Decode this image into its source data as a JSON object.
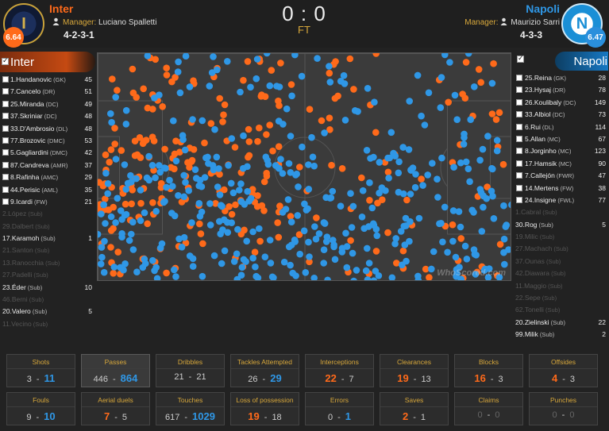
{
  "header": {
    "home": {
      "name": "Inter",
      "rating": "6.64",
      "manager_label": "Manager:",
      "manager": "Luciano Spalletti",
      "formation": "4-2-3-1",
      "logo_icon": "inter-crest-icon"
    },
    "away": {
      "name": "Napoli",
      "rating": "6.47",
      "manager_label": "Manager:",
      "manager": "Maurizio Sarri",
      "formation": "4-3-3",
      "logo_icon": "napoli-crest-icon"
    },
    "score": "0 : 0",
    "status": "FT"
  },
  "colors": {
    "home": "#ff6a1a",
    "away": "#2f97e6",
    "accent": "#d8a83b"
  },
  "home_panel": {
    "team_tab": "Inter",
    "players": [
      {
        "name": "1.Handanovic",
        "pos": "(GK)",
        "touches": "45",
        "sub": false,
        "played": true
      },
      {
        "name": "7.Cancelo",
        "pos": "(DR)",
        "touches": "51",
        "sub": false,
        "played": true
      },
      {
        "name": "25.Miranda",
        "pos": "(DC)",
        "touches": "49",
        "sub": false,
        "played": true
      },
      {
        "name": "37.Skriniar",
        "pos": "(DC)",
        "touches": "48",
        "sub": false,
        "played": true
      },
      {
        "name": "33.D'Ambrosio",
        "pos": "(DL)",
        "touches": "48",
        "sub": false,
        "played": true
      },
      {
        "name": "77.Brozovic",
        "pos": "(DMC)",
        "touches": "53",
        "sub": false,
        "played": true
      },
      {
        "name": "5.Gagliardini",
        "pos": "(DMC)",
        "touches": "42",
        "sub": false,
        "played": true
      },
      {
        "name": "87.Candreva",
        "pos": "(AMR)",
        "touches": "37",
        "sub": false,
        "played": true
      },
      {
        "name": "8.Rafinha",
        "pos": "(AMC)",
        "touches": "29",
        "sub": false,
        "played": true
      },
      {
        "name": "44.Perisic",
        "pos": "(AML)",
        "touches": "35",
        "sub": false,
        "played": true
      },
      {
        "name": "9.Icardi",
        "pos": "(FW)",
        "touches": "21",
        "sub": false,
        "played": true
      },
      {
        "name": "2.López",
        "pos": "(Sub)",
        "touches": "",
        "sub": true,
        "played": false
      },
      {
        "name": "29.Dalbert",
        "pos": "(Sub)",
        "touches": "",
        "sub": true,
        "played": false
      },
      {
        "name": "17.Karamoh",
        "pos": "(Sub)",
        "touches": "1",
        "sub": true,
        "played": true
      },
      {
        "name": "21.Santon",
        "pos": "(Sub)",
        "touches": "",
        "sub": true,
        "played": false
      },
      {
        "name": "13.Ranocchia",
        "pos": "(Sub)",
        "touches": "",
        "sub": true,
        "played": false
      },
      {
        "name": "27.Padelli",
        "pos": "(Sub)",
        "touches": "",
        "sub": true,
        "played": false
      },
      {
        "name": "23.Éder",
        "pos": "(Sub)",
        "touches": "10",
        "sub": true,
        "played": true
      },
      {
        "name": "46.Berni",
        "pos": "(Sub)",
        "touches": "",
        "sub": true,
        "played": false
      },
      {
        "name": "20.Valero",
        "pos": "(Sub)",
        "touches": "5",
        "sub": true,
        "played": true
      },
      {
        "name": "11.Vecino",
        "pos": "(Sub)",
        "touches": "",
        "sub": true,
        "played": false
      }
    ]
  },
  "away_panel": {
    "team_tab": "Napoli",
    "players": [
      {
        "name": "25.Reina",
        "pos": "(GK)",
        "touches": "28",
        "sub": false,
        "played": true
      },
      {
        "name": "23.Hysaj",
        "pos": "(DR)",
        "touches": "78",
        "sub": false,
        "played": true
      },
      {
        "name": "26.Koulibaly",
        "pos": "(DC)",
        "touches": "149",
        "sub": false,
        "played": true
      },
      {
        "name": "33.Albiol",
        "pos": "(DC)",
        "touches": "73",
        "sub": false,
        "played": true
      },
      {
        "name": "6.Rui",
        "pos": "(DL)",
        "touches": "114",
        "sub": false,
        "played": true
      },
      {
        "name": "5.Allan",
        "pos": "(MC)",
        "touches": "67",
        "sub": false,
        "played": true
      },
      {
        "name": "8.Jorginho",
        "pos": "(MC)",
        "touches": "123",
        "sub": false,
        "played": true
      },
      {
        "name": "17.Hamsik",
        "pos": "(MC)",
        "touches": "90",
        "sub": false,
        "played": true
      },
      {
        "name": "7.Callejón",
        "pos": "(FWR)",
        "touches": "47",
        "sub": false,
        "played": true
      },
      {
        "name": "14.Mertens",
        "pos": "(FW)",
        "touches": "38",
        "sub": false,
        "played": true
      },
      {
        "name": "24.Insigne",
        "pos": "(FWL)",
        "touches": "77",
        "sub": false,
        "played": true
      },
      {
        "name": "1.Cabral",
        "pos": "(Sub)",
        "touches": "",
        "sub": true,
        "played": false
      },
      {
        "name": "30.Rog",
        "pos": "(Sub)",
        "touches": "5",
        "sub": true,
        "played": true
      },
      {
        "name": "19.Milic",
        "pos": "(Sub)",
        "touches": "",
        "sub": true,
        "played": false
      },
      {
        "name": "27.Machach",
        "pos": "(Sub)",
        "touches": "",
        "sub": true,
        "played": false
      },
      {
        "name": "37.Ounas",
        "pos": "(Sub)",
        "touches": "",
        "sub": true,
        "played": false
      },
      {
        "name": "42.Diawara",
        "pos": "(Sub)",
        "touches": "",
        "sub": true,
        "played": false
      },
      {
        "name": "11.Maggio",
        "pos": "(Sub)",
        "touches": "",
        "sub": true,
        "played": false
      },
      {
        "name": "22.Sepe",
        "pos": "(Sub)",
        "touches": "",
        "sub": true,
        "played": false
      },
      {
        "name": "62.Tonelli",
        "pos": "(Sub)",
        "touches": "",
        "sub": true,
        "played": false
      },
      {
        "name": "20.Zielinski",
        "pos": "(Sub)",
        "touches": "22",
        "sub": true,
        "played": true
      },
      {
        "name": "99.Milik",
        "pos": "(Sub)",
        "touches": "2",
        "sub": true,
        "played": true
      }
    ]
  },
  "pitch": {
    "watermark": "WhoScored.com"
  },
  "stats": [
    {
      "label": "Shots",
      "home": "3",
      "away": "11",
      "winner": "away",
      "active": false
    },
    {
      "label": "Passes",
      "home": "446",
      "away": "864",
      "winner": "away",
      "active": true
    },
    {
      "label": "Dribbles",
      "home": "21",
      "away": "21",
      "winner": "none",
      "active": false
    },
    {
      "label": "Tackles Attempted",
      "home": "26",
      "away": "29",
      "winner": "away",
      "active": false
    },
    {
      "label": "Interceptions",
      "home": "22",
      "away": "7",
      "winner": "home",
      "active": false
    },
    {
      "label": "Clearances",
      "home": "19",
      "away": "13",
      "winner": "home",
      "active": false
    },
    {
      "label": "Blocks",
      "home": "16",
      "away": "3",
      "winner": "home",
      "active": false
    },
    {
      "label": "Offsides",
      "home": "4",
      "away": "3",
      "winner": "home",
      "active": false
    },
    {
      "label": "Fouls",
      "home": "9",
      "away": "10",
      "winner": "away",
      "active": false
    },
    {
      "label": "Aerial duels",
      "home": "7",
      "away": "5",
      "winner": "home",
      "active": false
    },
    {
      "label": "Touches",
      "home": "617",
      "away": "1029",
      "winner": "away",
      "active": false
    },
    {
      "label": "Loss of possession",
      "home": "19",
      "away": "18",
      "winner": "home",
      "active": false
    },
    {
      "label": "Errors",
      "home": "0",
      "away": "1",
      "winner": "away",
      "active": false
    },
    {
      "label": "Saves",
      "home": "2",
      "away": "1",
      "winner": "home",
      "active": false
    },
    {
      "label": "Claims",
      "home": "0",
      "away": "0",
      "winner": "zero",
      "active": false
    },
    {
      "label": "Punches",
      "home": "0",
      "away": "0",
      "winner": "zero",
      "active": false
    }
  ]
}
